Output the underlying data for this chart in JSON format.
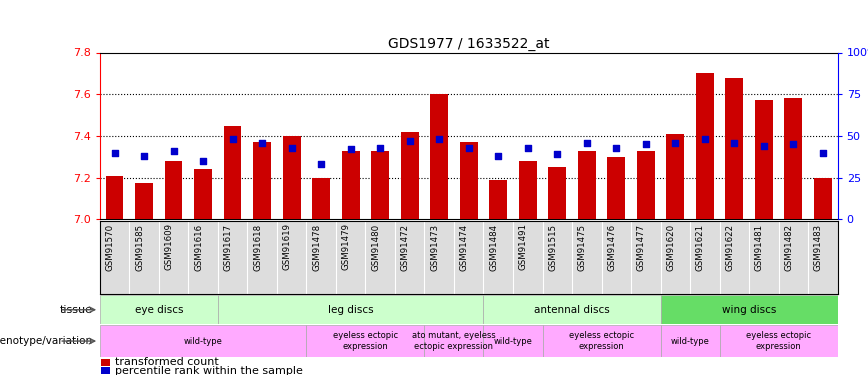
{
  "title": "GDS1977 / 1633522_at",
  "samples": [
    "GSM91570",
    "GSM91585",
    "GSM91609",
    "GSM91616",
    "GSM91617",
    "GSM91618",
    "GSM91619",
    "GSM91478",
    "GSM91479",
    "GSM91480",
    "GSM91472",
    "GSM91473",
    "GSM91474",
    "GSM91484",
    "GSM91491",
    "GSM91515",
    "GSM91475",
    "GSM91476",
    "GSM91477",
    "GSM91620",
    "GSM91621",
    "GSM91622",
    "GSM91481",
    "GSM91482",
    "GSM91483"
  ],
  "bar_values": [
    7.21,
    7.175,
    7.28,
    7.24,
    7.45,
    7.37,
    7.4,
    7.2,
    7.33,
    7.33,
    7.42,
    7.6,
    7.37,
    7.19,
    7.28,
    7.25,
    7.33,
    7.3,
    7.33,
    7.41,
    7.7,
    7.68,
    7.57,
    7.58,
    7.2
  ],
  "percentile_values": [
    40,
    38,
    41,
    35,
    48,
    46,
    43,
    33,
    42,
    43,
    47,
    48,
    43,
    38,
    43,
    39,
    46,
    43,
    45,
    46,
    48,
    46,
    44,
    45,
    40
  ],
  "ymin": 7.0,
  "ymax": 7.8,
  "yticks": [
    7.0,
    7.2,
    7.4,
    7.6,
    7.8
  ],
  "right_yticks": [
    0,
    25,
    50,
    75,
    100
  ],
  "right_yticklabels": [
    "0",
    "25",
    "50",
    "75",
    "100%"
  ],
  "bar_color": "#cc0000",
  "percentile_color": "#0000cc",
  "tissue_group_defs": [
    {
      "label": "eye discs",
      "start": 0,
      "end": 3,
      "color": "#ccffcc"
    },
    {
      "label": "leg discs",
      "start": 4,
      "end": 12,
      "color": "#ccffcc"
    },
    {
      "label": "antennal discs",
      "start": 13,
      "end": 18,
      "color": "#ccffcc"
    },
    {
      "label": "wing discs",
      "start": 19,
      "end": 24,
      "color": "#66dd66"
    }
  ],
  "geno_group_defs": [
    {
      "label": "wild-type",
      "start": 0,
      "end": 6,
      "color": "#ffaaff"
    },
    {
      "label": "eyeless ectopic\nexpression",
      "start": 7,
      "end": 10,
      "color": "#ffaaff"
    },
    {
      "label": "ato mutant, eyeless\nectopic expression",
      "start": 11,
      "end": 12,
      "color": "#ffaaff"
    },
    {
      "label": "wild-type",
      "start": 13,
      "end": 14,
      "color": "#ffaaff"
    },
    {
      "label": "eyeless ectopic\nexpression",
      "start": 15,
      "end": 18,
      "color": "#ffaaff"
    },
    {
      "label": "wild-type",
      "start": 19,
      "end": 20,
      "color": "#ffaaff"
    },
    {
      "label": "eyeless ectopic\nexpression",
      "start": 21,
      "end": 24,
      "color": "#ffaaff"
    }
  ],
  "legend_bar_label": "transformed count",
  "legend_pct_label": "percentile rank within the sample",
  "tissue_label": "tissue",
  "genotype_label": "genotype/variation",
  "chart_bg": "#ffffff",
  "xlabel_bg": "#dddddd"
}
